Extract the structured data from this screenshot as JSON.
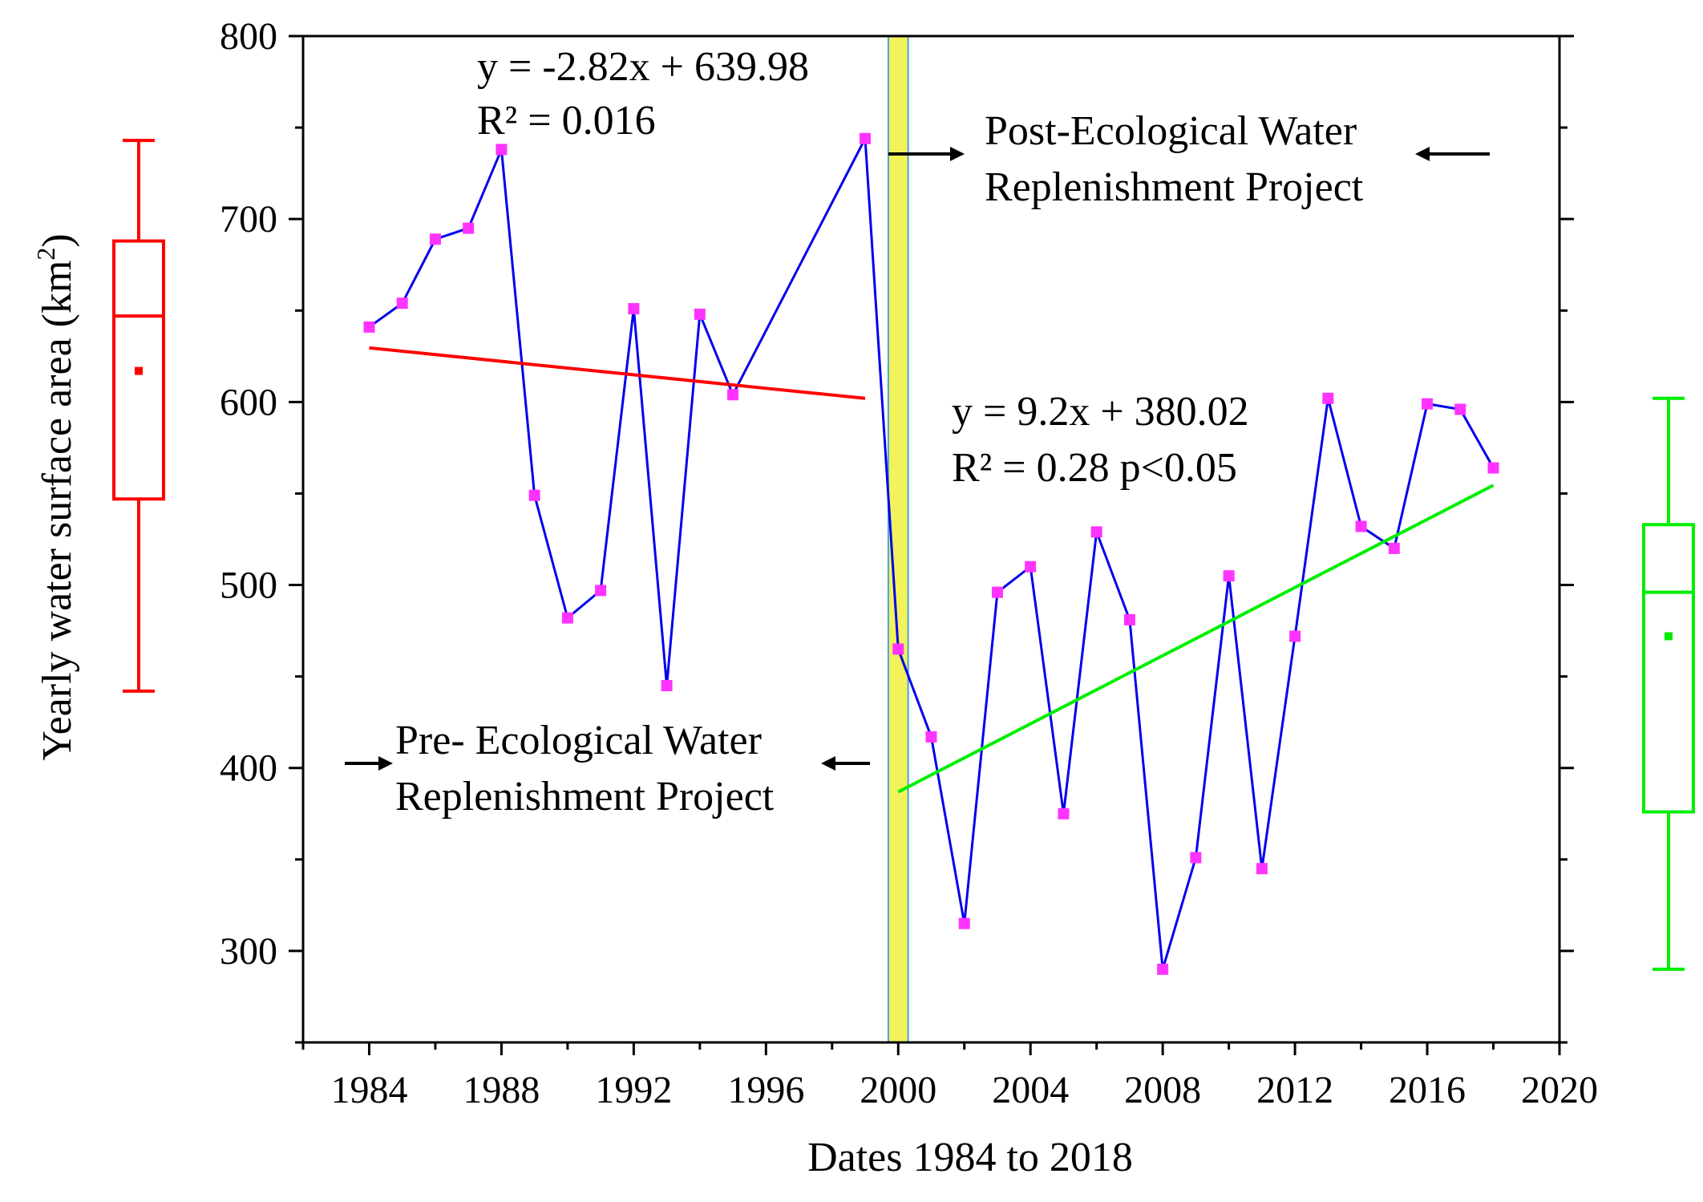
{
  "chart_data": {
    "type": "line",
    "title": "",
    "xlabel": "Dates 1984 to 2018",
    "ylabel_main": "Yearly water surface area (km",
    "ylabel_sup": "2",
    "ylabel_tail": ")",
    "xlim": [
      1982,
      2020
    ],
    "ylim": [
      250,
      800
    ],
    "x_ticks": [
      1984,
      1988,
      1992,
      1996,
      2000,
      2004,
      2008,
      2012,
      2016,
      2020
    ],
    "y_ticks": [
      300,
      400,
      500,
      600,
      700,
      800
    ],
    "series": [
      {
        "name": "Yearly water surface area",
        "line_color": "#0000ee",
        "marker_color": "#ff33ff",
        "x": [
          1984,
          1985,
          1986,
          1987,
          1988,
          1989,
          1990,
          1991,
          1992,
          1993,
          1994,
          1995,
          1999,
          2000,
          2001,
          2002,
          2003,
          2004,
          2005,
          2006,
          2007,
          2008,
          2009,
          2010,
          2011,
          2012,
          2013,
          2014,
          2015,
          2016,
          2017,
          2018
        ],
        "y": [
          641,
          654,
          689,
          695,
          738,
          549,
          482,
          497,
          651,
          445,
          648,
          604,
          744,
          465,
          417,
          315,
          496,
          510,
          375,
          529,
          481,
          290,
          351,
          505,
          345,
          472,
          602,
          532,
          520,
          599,
          596,
          564
        ]
      }
    ],
    "trendlines": [
      {
        "name": "pre",
        "color": "#ff0000",
        "x": [
          1984,
          1999
        ],
        "y": [
          629.6,
          602.0
        ],
        "equation": "y = -2.82x + 639.98",
        "r2": "R² = 0.016"
      },
      {
        "name": "post",
        "color": "#00ee00",
        "x": [
          2000,
          2018
        ],
        "y": [
          386.9,
          554.5
        ],
        "equation": "y = 9.2x + 380.02",
        "r2": "R² = 0.28 p<0.05"
      }
    ],
    "highlight_band": {
      "x_range": [
        1999.7,
        2000.3
      ],
      "color": "#f2f25a"
    },
    "annotations": {
      "post_line1": "Post-Ecological Water",
      "post_line2": "Replenishment Project",
      "pre_line1": "Pre- Ecological Water",
      "pre_line2": "Replenishment Project"
    },
    "boxplots": [
      {
        "name": "pre",
        "color": "#ff0000",
        "min": 442,
        "q1": 547,
        "median": 647,
        "q3": 688,
        "max": 743,
        "mean": 617
      },
      {
        "name": "post",
        "color": "#00ee00",
        "min": 290,
        "q1": 376,
        "median": 496,
        "q3": 533,
        "max": 602,
        "mean": 472
      }
    ]
  }
}
